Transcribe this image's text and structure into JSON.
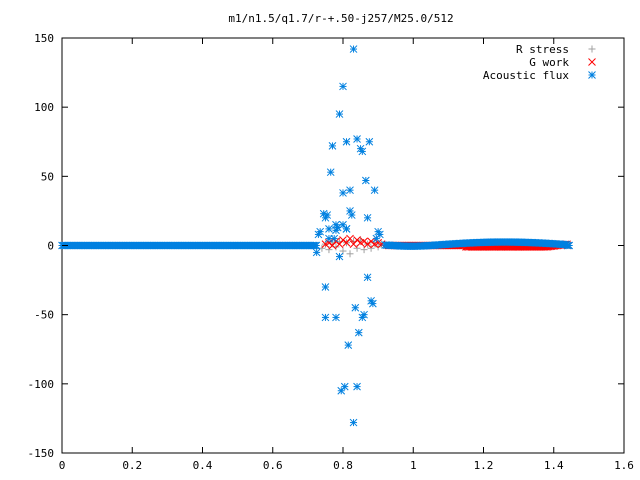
{
  "chart_data": {
    "type": "scatter",
    "title": "m1/n1.5/q1.7/r-+.50-j257/M25.0/512",
    "xlabel": "",
    "ylabel": "",
    "xlim": [
      0,
      1.6
    ],
    "ylim": [
      -150,
      150
    ],
    "xticks": [
      0,
      0.2,
      0.4,
      0.6,
      0.8,
      1,
      1.2,
      1.4,
      1.6
    ],
    "xtick_labels": [
      "0",
      "0.2",
      "0.4",
      "0.6",
      "0.8",
      "1",
      "1.2",
      "1.4",
      "1.6"
    ],
    "yticks": [
      -150,
      -100,
      -50,
      0,
      50,
      100,
      150
    ],
    "ytick_labels": [
      "-150",
      "-100",
      "-50",
      "0",
      "50",
      "100",
      "150"
    ],
    "grid": false,
    "legend_position": "top-right",
    "series": [
      {
        "name": "R stress",
        "marker": "plus",
        "color": "#a0a0a0",
        "points": [
          [
            0.74,
            -2
          ],
          [
            0.75,
            1
          ],
          [
            0.76,
            -3
          ],
          [
            0.77,
            2
          ],
          [
            0.78,
            -1
          ],
          [
            0.79,
            3
          ],
          [
            0.8,
            -4
          ],
          [
            0.81,
            2
          ],
          [
            0.82,
            -6
          ],
          [
            0.83,
            3
          ],
          [
            0.84,
            -2
          ],
          [
            0.85,
            4
          ],
          [
            0.86,
            -3
          ],
          [
            0.87,
            1
          ],
          [
            0.88,
            -2
          ],
          [
            0.89,
            2
          ],
          [
            0.9,
            -1
          ],
          [
            0.91,
            1
          ],
          [
            0.92,
            0
          ],
          [
            0.95,
            0
          ],
          [
            1.0,
            0
          ],
          [
            1.1,
            0
          ],
          [
            1.2,
            0
          ],
          [
            1.3,
            0
          ],
          [
            1.4,
            0
          ],
          [
            1.44,
            0
          ]
        ]
      },
      {
        "name": "G work",
        "marker": "cross",
        "color": "#ff0000",
        "points": [
          [
            0.75,
            1
          ],
          [
            0.76,
            2
          ],
          [
            0.77,
            0
          ],
          [
            0.78,
            3
          ],
          [
            0.79,
            1
          ],
          [
            0.8,
            4
          ],
          [
            0.81,
            2
          ],
          [
            0.82,
            5
          ],
          [
            0.83,
            1
          ],
          [
            0.84,
            4
          ],
          [
            0.85,
            2
          ],
          [
            0.86,
            3
          ],
          [
            0.87,
            1
          ],
          [
            0.88,
            3
          ],
          [
            0.89,
            1
          ],
          [
            0.9,
            2
          ],
          [
            0.91,
            1
          ],
          [
            1.2,
            -1
          ],
          [
            1.25,
            -1
          ],
          [
            1.3,
            -1
          ],
          [
            1.35,
            0
          ],
          [
            1.38,
            1
          ],
          [
            1.4,
            1
          ],
          [
            1.42,
            1
          ],
          [
            1.44,
            0
          ]
        ]
      },
      {
        "name": "Acoustic flux",
        "marker": "asterisk",
        "color": "#0080e0",
        "points": [
          [
            0.725,
            -5
          ],
          [
            0.73,
            8
          ],
          [
            0.735,
            10
          ],
          [
            0.745,
            23
          ],
          [
            0.75,
            20
          ],
          [
            0.755,
            22
          ],
          [
            0.75,
            -30
          ],
          [
            0.75,
            -52
          ],
          [
            0.76,
            5
          ],
          [
            0.765,
            53
          ],
          [
            0.77,
            72
          ],
          [
            0.775,
            5
          ],
          [
            0.78,
            15
          ],
          [
            0.78,
            -52
          ],
          [
            0.785,
            13
          ],
          [
            0.79,
            95
          ],
          [
            0.795,
            -105
          ],
          [
            0.8,
            115
          ],
          [
            0.8,
            38
          ],
          [
            0.805,
            -102
          ],
          [
            0.81,
            75
          ],
          [
            0.81,
            12
          ],
          [
            0.815,
            -72
          ],
          [
            0.82,
            40
          ],
          [
            0.82,
            25
          ],
          [
            0.825,
            22
          ],
          [
            0.83,
            142
          ],
          [
            0.83,
            -128
          ],
          [
            0.835,
            -45
          ],
          [
            0.84,
            77
          ],
          [
            0.84,
            -102
          ],
          [
            0.845,
            -63
          ],
          [
            0.85,
            70
          ],
          [
            0.855,
            68
          ],
          [
            0.855,
            -52
          ],
          [
            0.86,
            -50
          ],
          [
            0.865,
            47
          ],
          [
            0.87,
            20
          ],
          [
            0.87,
            -23
          ],
          [
            0.875,
            75
          ],
          [
            0.88,
            -40
          ],
          [
            0.885,
            -42
          ],
          [
            0.89,
            40
          ],
          [
            0.895,
            5
          ],
          [
            0.9,
            10
          ],
          [
            0.905,
            8
          ],
          [
            0.79,
            -8
          ],
          [
            0.8,
            15
          ],
          [
            0.81,
            12
          ],
          [
            0.76,
            12
          ],
          [
            0.78,
            11
          ]
        ]
      }
    ]
  }
}
